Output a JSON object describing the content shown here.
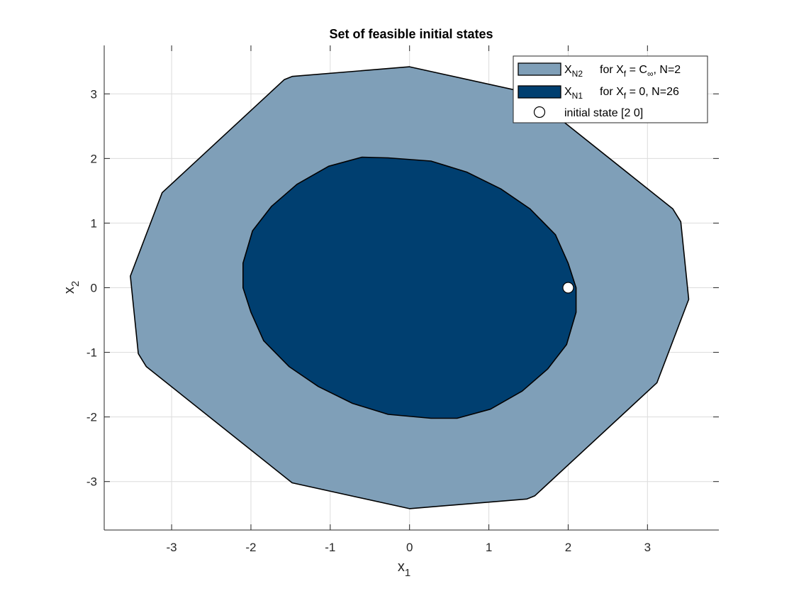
{
  "chart_data": {
    "type": "area",
    "title": "Set of feasible initial states",
    "xlabel": {
      "base": "x",
      "sub": "1"
    },
    "ylabel": {
      "base": "x",
      "sub": "2"
    },
    "xlim": [
      -3.85,
      3.9
    ],
    "ylim": [
      -3.75,
      3.75
    ],
    "xticks": [
      -3,
      -2,
      -1,
      0,
      1,
      2,
      3
    ],
    "yticks": [
      -3,
      -2,
      -1,
      0,
      1,
      2,
      3
    ],
    "grid": true,
    "legend_position": "top-right",
    "colors": {
      "outer_fill": "#7f9fb8",
      "inner_fill": "#003f70",
      "edge": "#000000",
      "marker_fill": "#ffffff"
    },
    "series": [
      {
        "key": "outer",
        "legend": {
          "base": "X",
          "sub": "N2",
          "desc_pre": "for X",
          "desc_sub1": "f",
          "desc_mid": " = C",
          "desc_sub2": "∞",
          "desc_post": ", N=2"
        },
        "vertices": [
          [
            0.0,
            3.42
          ],
          [
            1.48,
            3.02
          ],
          [
            3.32,
            1.22
          ],
          [
            3.42,
            1.02
          ],
          [
            3.52,
            -0.18
          ],
          [
            3.12,
            -1.47
          ],
          [
            1.58,
            -3.22
          ],
          [
            1.48,
            -3.27
          ],
          [
            0.0,
            -3.42
          ],
          [
            -1.48,
            -3.02
          ],
          [
            -3.32,
            -1.22
          ],
          [
            -3.42,
            -1.02
          ],
          [
            -3.52,
            0.18
          ],
          [
            -3.12,
            1.47
          ],
          [
            -1.58,
            3.22
          ],
          [
            -1.48,
            3.27
          ]
        ]
      },
      {
        "key": "inner",
        "legend": {
          "base": "X",
          "sub": "N1",
          "desc_pre": "for X",
          "desc_sub1": "f",
          "desc_mid": " = 0,",
          "desc_sub2": "",
          "desc_post": "    N=26"
        },
        "vertices": [
          [
            -0.27,
            2.01
          ],
          [
            0.27,
            1.96
          ],
          [
            0.72,
            1.79
          ],
          [
            1.15,
            1.53
          ],
          [
            1.52,
            1.22
          ],
          [
            1.84,
            0.82
          ],
          [
            2.0,
            0.38
          ],
          [
            2.1,
            0.0
          ],
          [
            2.1,
            -0.38
          ],
          [
            1.98,
            -0.88
          ],
          [
            1.74,
            -1.26
          ],
          [
            1.42,
            -1.6
          ],
          [
            1.02,
            -1.88
          ],
          [
            0.6,
            -2.02
          ],
          [
            0.27,
            -2.02
          ],
          [
            -0.27,
            -1.96
          ],
          [
            -0.72,
            -1.79
          ],
          [
            -1.15,
            -1.53
          ],
          [
            -1.52,
            -1.22
          ],
          [
            -1.84,
            -0.82
          ],
          [
            -2.0,
            -0.38
          ],
          [
            -2.1,
            0.0
          ],
          [
            -2.1,
            0.38
          ],
          [
            -1.98,
            0.88
          ],
          [
            -1.74,
            1.26
          ],
          [
            -1.42,
            1.6
          ],
          [
            -1.02,
            1.88
          ],
          [
            -0.6,
            2.02
          ]
        ]
      }
    ],
    "marker": {
      "x": 2.0,
      "y": 0.0,
      "legend_label": "initial state [2 0]"
    }
  }
}
